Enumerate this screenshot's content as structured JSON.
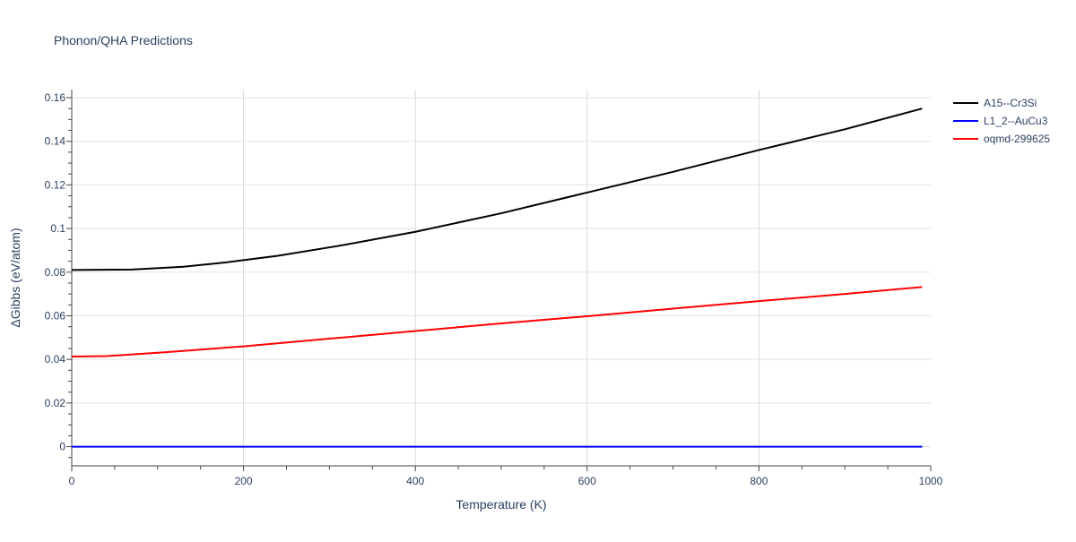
{
  "chart_data": {
    "type": "line",
    "title": "Phonon/QHA Predictions",
    "xlabel": "Temperature (K)",
    "ylabel": "ΔGibbs (eV/atom)",
    "xlim": [
      0,
      1000
    ],
    "ylim": [
      -0.0088,
      0.1637
    ],
    "xticks": [
      0,
      200,
      400,
      600,
      800,
      1000
    ],
    "yticks": [
      0,
      0.02,
      0.04,
      0.06,
      0.08,
      0.1,
      0.12,
      0.14,
      0.16
    ],
    "ytick_labels": [
      "0",
      "0.02",
      "0.04",
      "0.06",
      "0.08",
      "0.1",
      "0.12",
      "0.14",
      "0.16"
    ],
    "grid": true,
    "legend_position": "top-right",
    "series": [
      {
        "name": "A15--Cr3Si",
        "color": "#000000",
        "x": [
          0,
          70,
          130,
          180,
          240,
          310,
          400,
          500,
          600,
          700,
          800,
          900,
          990
        ],
        "y": [
          0.081,
          0.0812,
          0.0825,
          0.0845,
          0.0875,
          0.092,
          0.0985,
          0.107,
          0.1165,
          0.126,
          0.136,
          0.1455,
          0.155
        ]
      },
      {
        "name": "L1_2--AuCu3",
        "color": "#0000ff",
        "x": [
          0,
          990
        ],
        "y": [
          0,
          0
        ]
      },
      {
        "name": "oqmd-299625",
        "color": "#ff0000",
        "x": [
          0,
          40,
          110,
          200,
          300,
          400,
          500,
          600,
          700,
          800,
          900,
          990
        ],
        "y": [
          0.0413,
          0.0415,
          0.0433,
          0.046,
          0.0495,
          0.053,
          0.0565,
          0.0598,
          0.0633,
          0.0667,
          0.07,
          0.0732
        ]
      }
    ]
  }
}
